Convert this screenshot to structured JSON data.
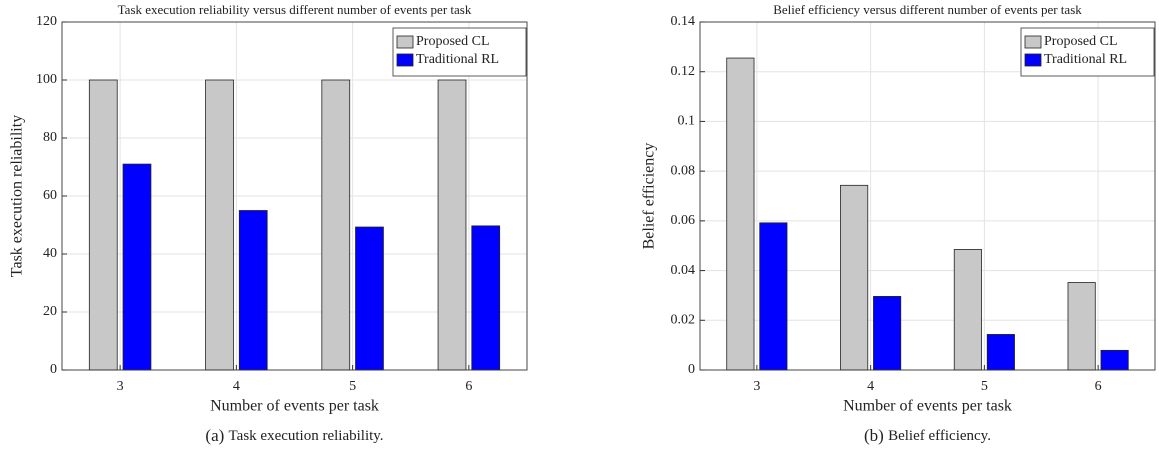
{
  "chart_data": [
    {
      "type": "bar",
      "title": "Task execution reliability versus different number of events per task",
      "xlabel": "Number of events per task",
      "ylabel": "Task execution reliability",
      "caption_tag": "(a)",
      "caption": "Task execution reliability.",
      "categories": [
        "3",
        "4",
        "5",
        "6"
      ],
      "series": [
        {
          "name": "Proposed CL",
          "color": "#c8c8c8",
          "values": [
            100,
            100,
            100,
            100
          ]
        },
        {
          "name": "Traditional RL",
          "color": "#0000ff",
          "values": [
            71,
            55,
            49.3,
            49.7
          ]
        }
      ],
      "ylim": [
        0,
        120
      ],
      "yticks": [
        0,
        20,
        40,
        60,
        80,
        100,
        120
      ],
      "grid": true,
      "legend": "upper right"
    },
    {
      "type": "bar",
      "title": "Belief efficiency versus different number of events per task",
      "xlabel": "Number of events per task",
      "ylabel": "Belief efficiency",
      "caption_tag": "(b)",
      "caption": "Belief efficiency.",
      "categories": [
        "3",
        "4",
        "5",
        "6"
      ],
      "series": [
        {
          "name": "Proposed CL",
          "color": "#c8c8c8",
          "values": [
            0.1255,
            0.0743,
            0.0485,
            0.0352
          ]
        },
        {
          "name": "Traditional RL",
          "color": "#0000ff",
          "values": [
            0.0592,
            0.0296,
            0.0143,
            0.0079
          ]
        }
      ],
      "ylim": [
        0,
        0.14
      ],
      "yticks": [
        0,
        0.02,
        0.04,
        0.06,
        0.08,
        0.1,
        0.12,
        0.14
      ],
      "grid": true,
      "legend": "upper right"
    }
  ]
}
